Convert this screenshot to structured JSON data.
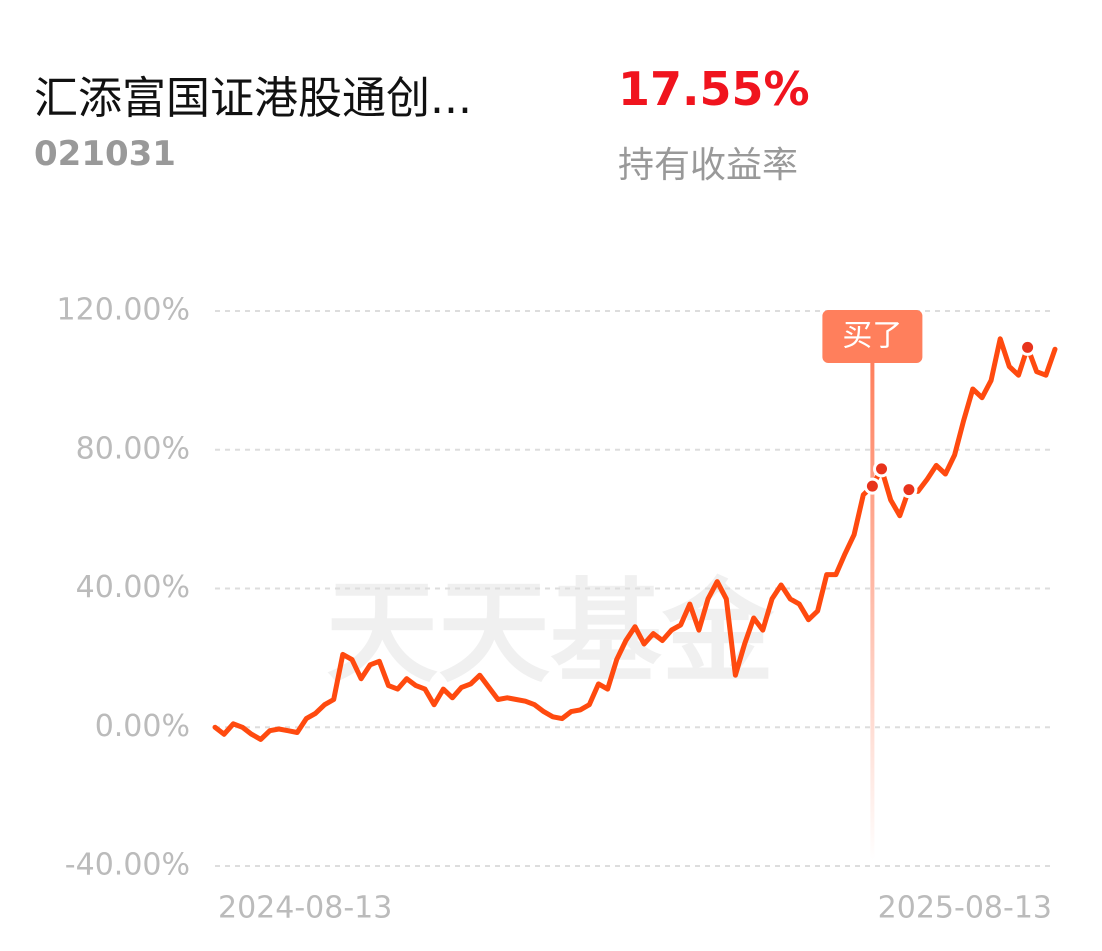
{
  "fund": {
    "name": "汇添富国证港股通创...",
    "code": "021031"
  },
  "holding_return": {
    "value": "17.55%",
    "label": "持有收益率"
  },
  "chart_data": {
    "type": "line",
    "watermark": "天天基金",
    "color": "#ff4a0f",
    "categories": [
      "2024-08-13",
      null,
      null,
      null,
      null,
      null,
      null,
      null,
      null,
      null,
      null,
      null,
      null,
      null,
      null,
      null,
      null,
      null,
      null,
      null,
      null,
      null,
      null,
      null,
      null,
      null,
      null,
      null,
      null,
      null,
      null,
      null,
      null,
      null,
      null,
      null,
      null,
      null,
      null,
      null,
      null,
      null,
      null,
      null,
      null,
      null,
      null,
      null,
      null,
      null,
      null,
      null,
      null,
      null,
      null,
      null,
      null,
      null,
      null,
      null,
      null,
      null,
      null,
      null,
      null,
      null,
      null,
      null,
      null,
      null,
      null,
      null,
      null,
      null,
      null,
      null,
      null,
      null,
      null,
      null,
      null,
      null,
      null,
      null,
      null,
      null,
      null,
      null,
      null,
      null,
      null,
      null,
      "2025-08-13"
    ],
    "values": [
      0,
      -2,
      1,
      0,
      -2,
      -3.5,
      -1,
      -0.5,
      -1,
      -1.5,
      2.5,
      4,
      6.5,
      8,
      21,
      19.5,
      14,
      18,
      19,
      12,
      11,
      14,
      12,
      11,
      6.5,
      11,
      8.5,
      11.5,
      12.5,
      15,
      11.5,
      8,
      8.5,
      8,
      7.5,
      6.5,
      4.5,
      3,
      2.5,
      4.5,
      5,
      6.5,
      12.5,
      11,
      19.5,
      25,
      29,
      24,
      27,
      25,
      28,
      29.5,
      35.5,
      28,
      37,
      42,
      37,
      15,
      24,
      31.5,
      28,
      37,
      41,
      37,
      35.5,
      31,
      33.5,
      44,
      44,
      50,
      55.5,
      67,
      69.5,
      74.5,
      65.5,
      61,
      68.5,
      68,
      71.5,
      75.5,
      73,
      78.5,
      88.5,
      97.5,
      95,
      100,
      112,
      104,
      101.5,
      109.5,
      102.5,
      101.5,
      109
    ],
    "highlight_points": [
      72,
      73,
      76,
      89
    ],
    "annotation": {
      "text": "买了",
      "index": 72
    },
    "ylim": [
      -40,
      120
    ],
    "yticks": [
      {
        "value": -40,
        "label": "-40.00%"
      },
      {
        "value": 0,
        "label": "0.00%"
      },
      {
        "value": 40,
        "label": "40.00%"
      },
      {
        "value": 80,
        "label": "80.00%"
      },
      {
        "value": 120,
        "label": "120.00%"
      }
    ],
    "grid": true
  }
}
